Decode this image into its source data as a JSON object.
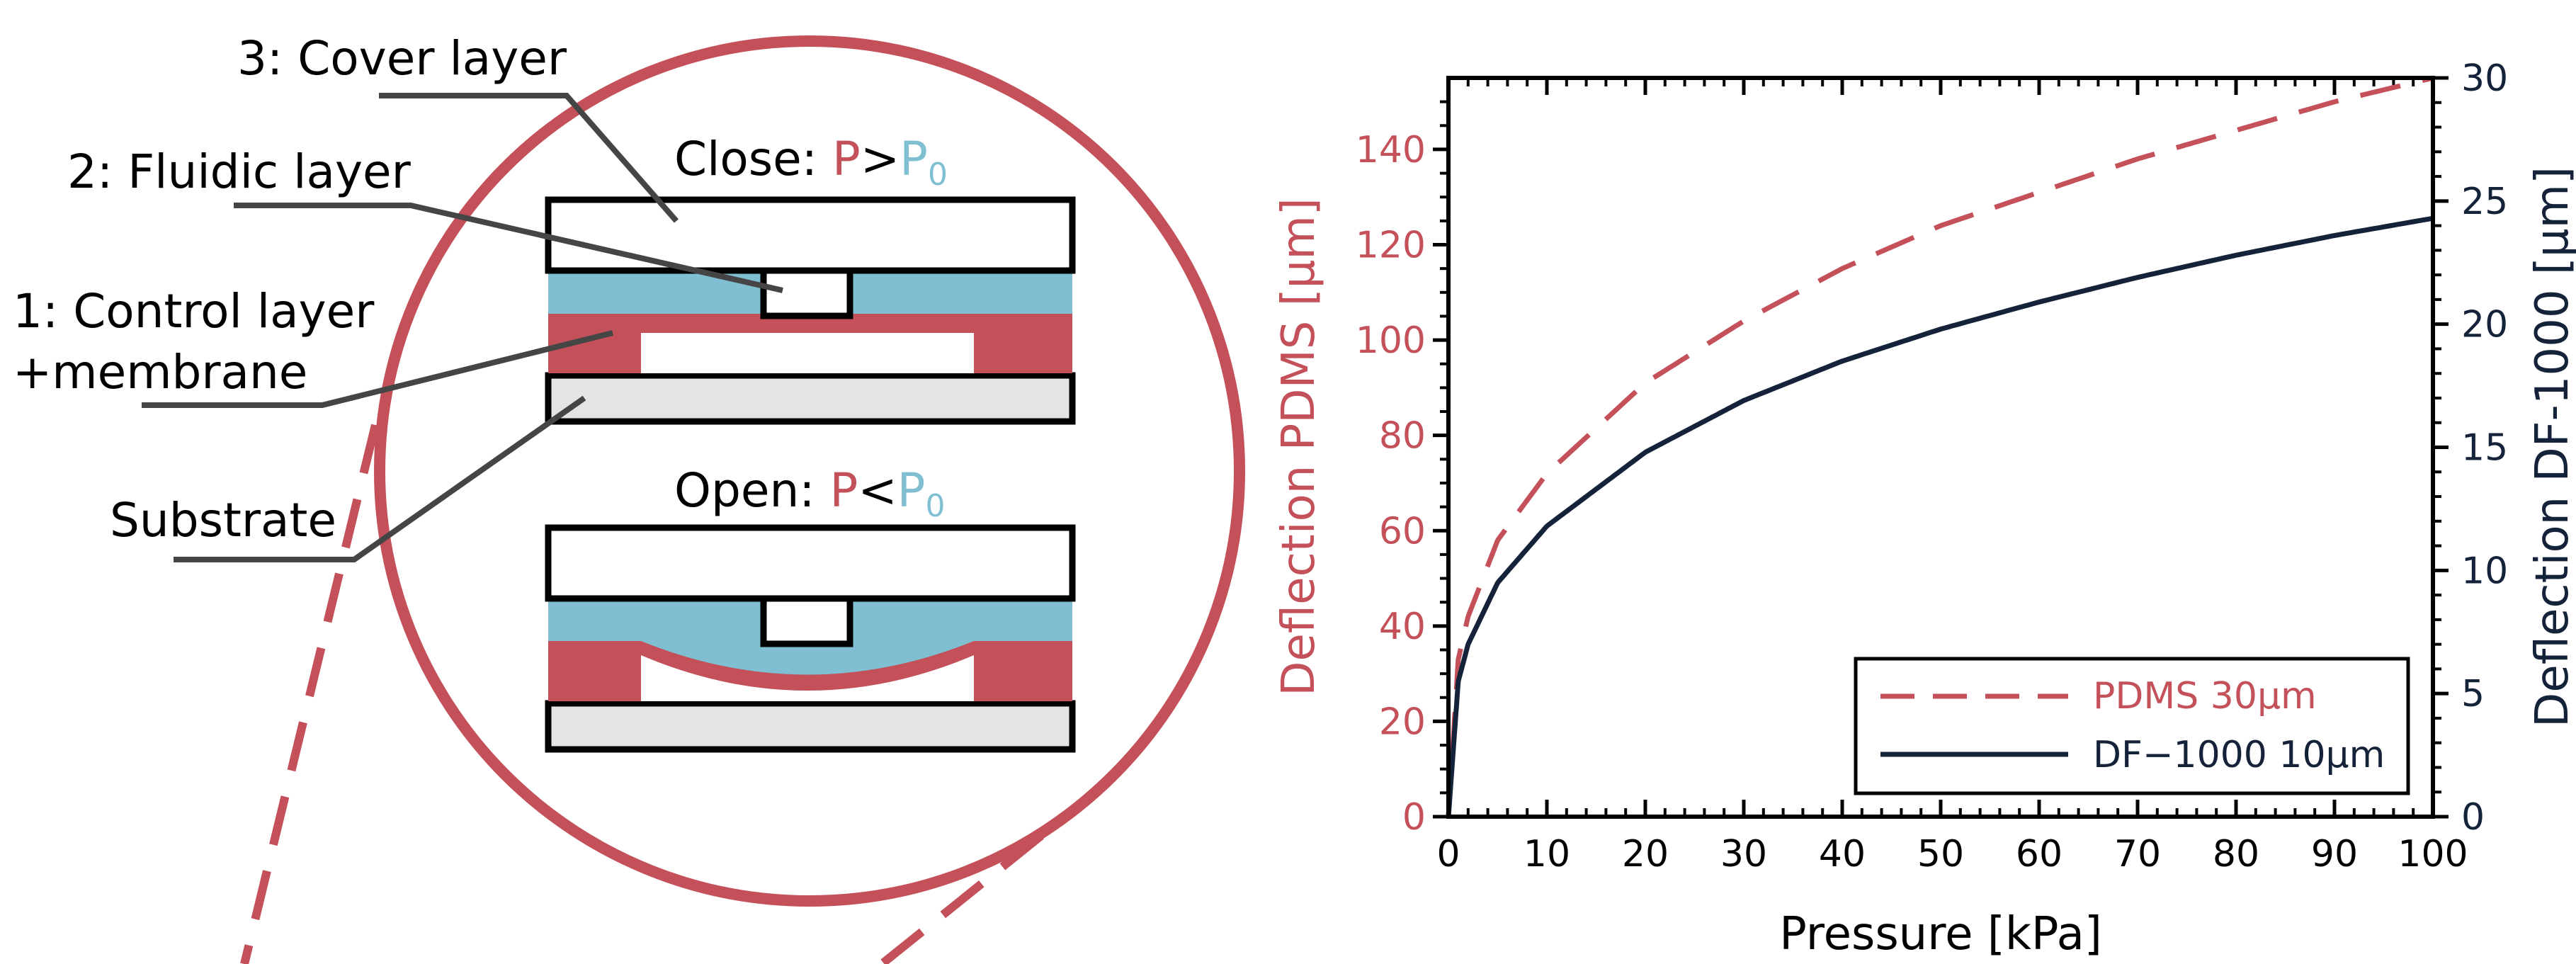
{
  "colors": {
    "pdms": "#c4515a",
    "df1000": "#14233a",
    "fluid": "#7fbfd1",
    "substrate": "#e4e4e4",
    "leader": "#454545",
    "circle": "#c4515a"
  },
  "schematic": {
    "labels": {
      "cover": "3: Cover layer",
      "fluidic": "2: Fluidic layer",
      "control_line1": "1: Control layer",
      "control_line2": "+membrane",
      "substrate": "Substrate"
    },
    "close_state": {
      "prefix": "Close: ",
      "p": "P",
      "op": ">",
      "p0": "P",
      "sub": "0"
    },
    "open_state": {
      "prefix": "Open: ",
      "p": "P",
      "op": "<",
      "p0": "P",
      "sub": "0"
    }
  },
  "chart_data": {
    "type": "line",
    "xlabel": "Pressure [kPa]",
    "ylabel_left": "Deflection PDMS [µm]",
    "ylabel_right": "Deflection DF-1000 [µm]",
    "xlim": [
      0,
      100
    ],
    "ylim_left": [
      0,
      155
    ],
    "ylim_right": [
      0,
      30
    ],
    "xticks": [
      0,
      10,
      20,
      30,
      40,
      50,
      60,
      70,
      80,
      90,
      100
    ],
    "yticks_left": [
      0,
      20,
      40,
      60,
      80,
      100,
      120,
      140
    ],
    "yticks_right": [
      0,
      5,
      10,
      15,
      20,
      25,
      30
    ],
    "legend_position": "bottom-right",
    "series": [
      {
        "name": "PDMS 30µm",
        "axis": "left",
        "style": "dashed",
        "x": [
          0,
          1,
          2,
          5,
          10,
          20,
          30,
          40,
          50,
          60,
          70,
          80,
          90,
          100
        ],
        "y": [
          0,
          33,
          42,
          58,
          72,
          91,
          104,
          115,
          124,
          131,
          138,
          144,
          150,
          155
        ]
      },
      {
        "name": "DF−1000 10µm",
        "axis": "right",
        "style": "solid",
        "x": [
          0,
          1,
          2,
          5,
          10,
          20,
          30,
          40,
          50,
          60,
          70,
          80,
          90,
          100
        ],
        "y": [
          0,
          5.5,
          7,
          9.5,
          11.8,
          14.8,
          16.9,
          18.5,
          19.8,
          20.9,
          21.9,
          22.8,
          23.6,
          24.3
        ]
      }
    ]
  }
}
